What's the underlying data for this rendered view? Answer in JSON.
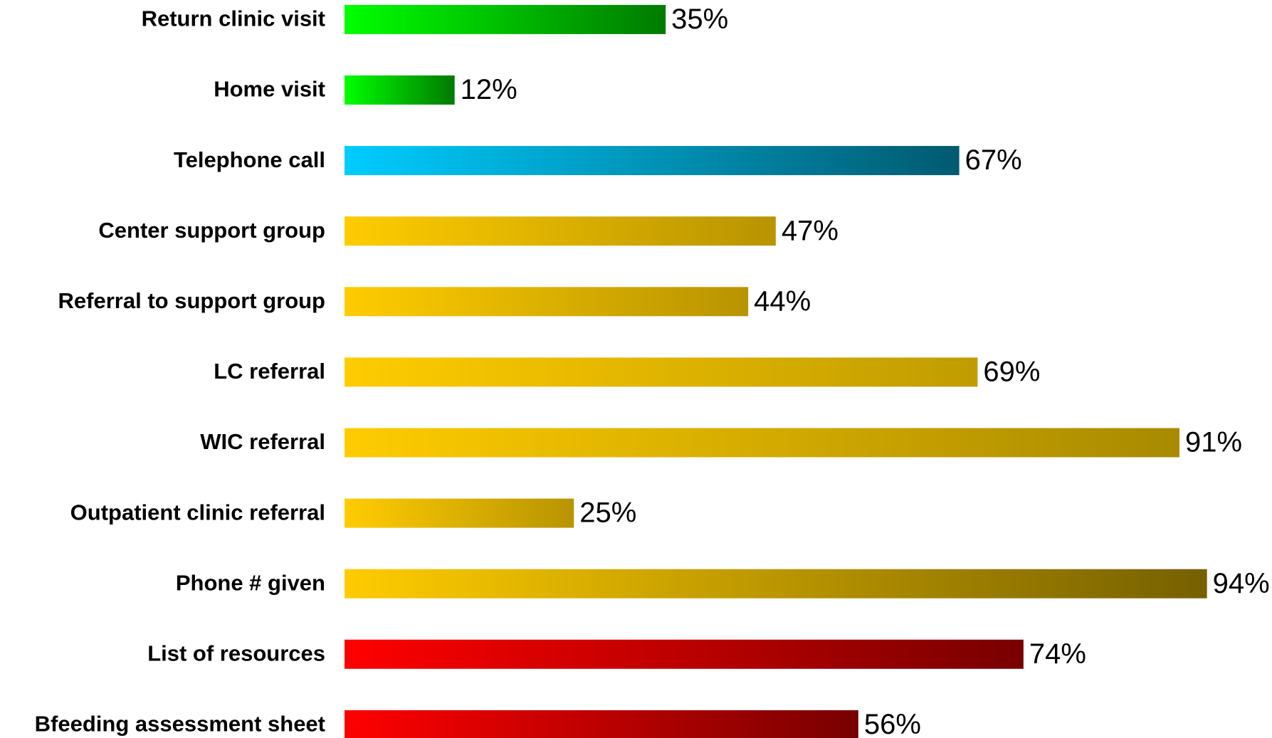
{
  "chart_data": {
    "type": "bar",
    "orientation": "horizontal",
    "categories": [
      "Return clinic visit",
      "Home visit",
      "Telephone call",
      "Center support group",
      "Referral to support group",
      "LC referral",
      "WIC referral",
      "Outpatient clinic referral",
      "Phone # given",
      "List of resources",
      "Bfeeding assessment sheet"
    ],
    "values": [
      35,
      12,
      67,
      47,
      44,
      69,
      91,
      25,
      94,
      74,
      56
    ],
    "value_labels": [
      "35%",
      "12%",
      "67%",
      "47%",
      "44%",
      "69%",
      "91%",
      "25%",
      "94%",
      "74%",
      "56%"
    ],
    "colors": [
      "#00ff00",
      "#00ff00",
      "#00ccff",
      "#ffcc00",
      "#ffcc00",
      "#ffcc00",
      "#ffcc00",
      "#ffcc00",
      "#ffcc00",
      "#ff0000",
      "#ff0000"
    ],
    "end_colors": [
      "#007a00",
      "#007a00",
      "#005a70",
      "#b89400",
      "#b89400",
      "#c09c00",
      "#a88a00",
      "#b89400",
      "#766000",
      "#780000",
      "#780000"
    ],
    "xlim": [
      0,
      100
    ]
  }
}
